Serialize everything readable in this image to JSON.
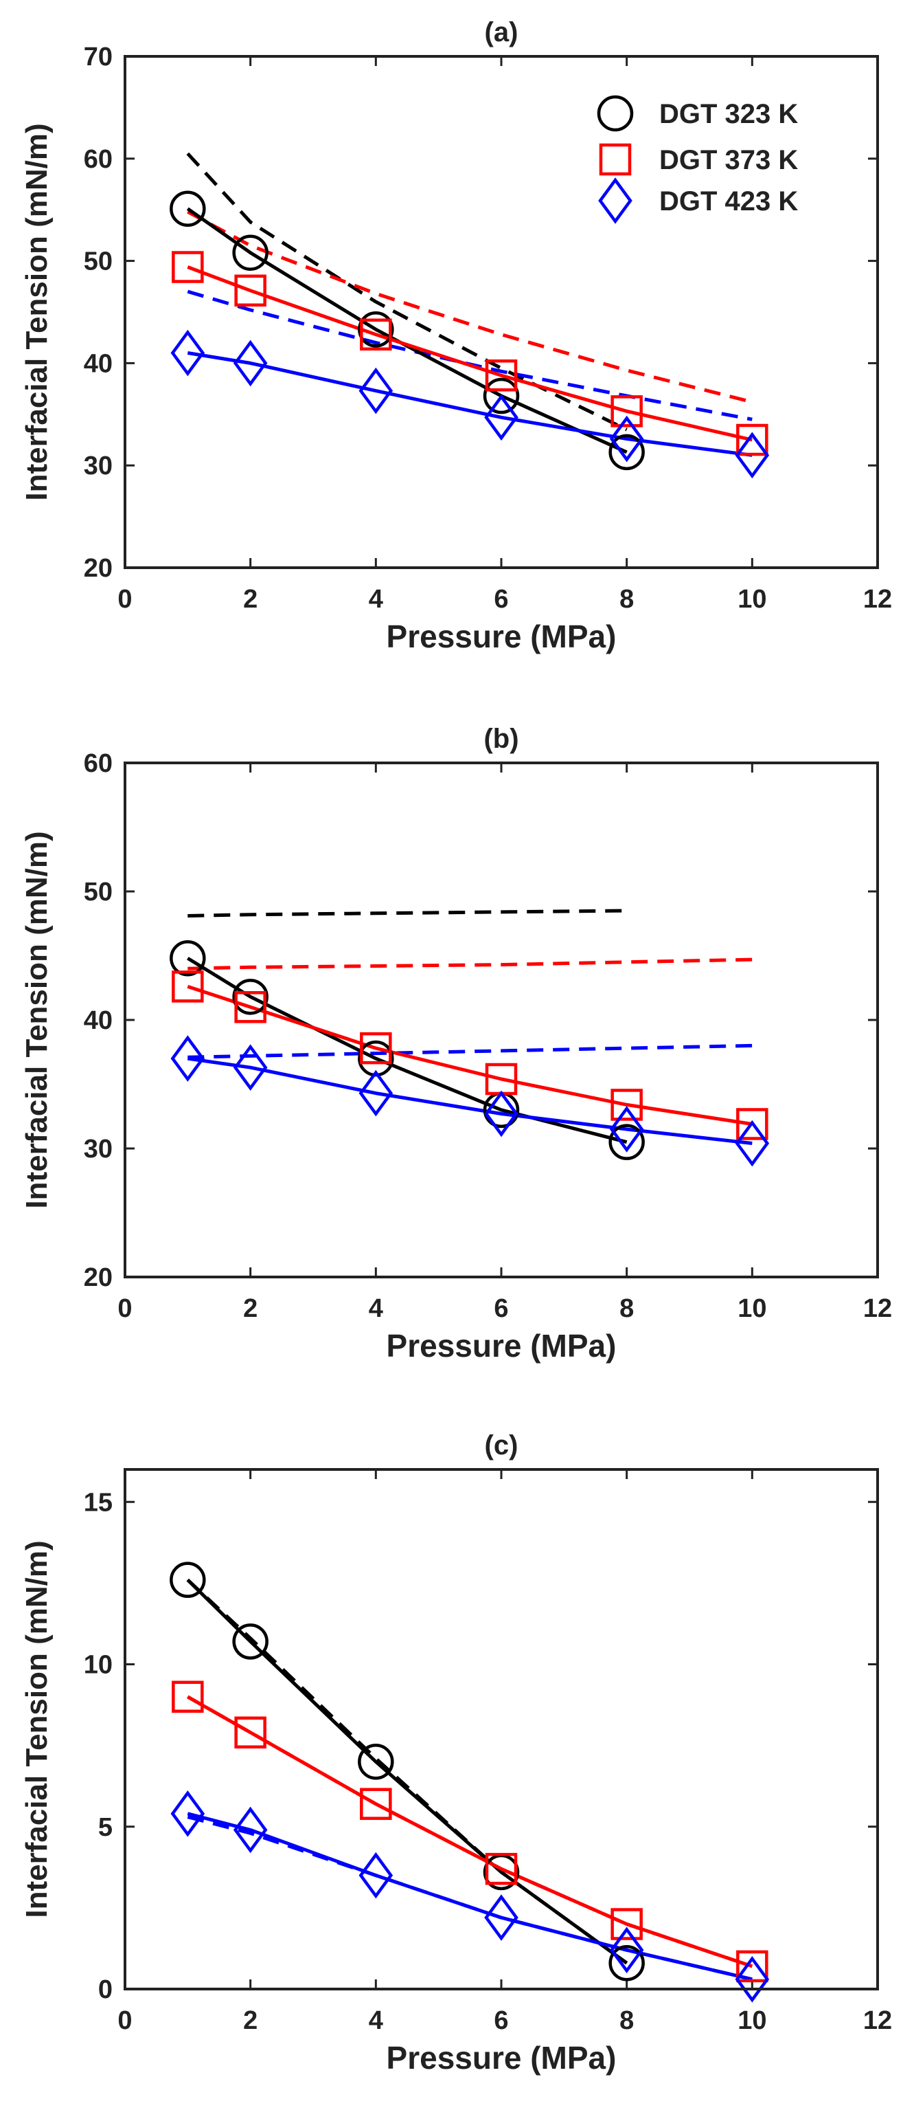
{
  "chart_data": [
    {
      "type": "line",
      "title": "(a)",
      "xlabel": "Pressure (MPa)",
      "ylabel": "Interfacial Tension (mN/m)",
      "xlim": [
        0,
        12
      ],
      "ylim": [
        20,
        70
      ],
      "xticks": [
        0,
        2,
        4,
        6,
        8,
        10,
        12
      ],
      "yticks": [
        20,
        30,
        40,
        50,
        60,
        70
      ],
      "legend": {
        "position": "top-right",
        "entries": [
          {
            "label": "DGT 323 K",
            "marker": "circle",
            "color": "#000000"
          },
          {
            "label": "DGT 373 K",
            "marker": "square",
            "color": "#ff0000"
          },
          {
            "label": "DGT 423 K",
            "marker": "diamond",
            "color": "#0000ff"
          }
        ]
      },
      "series": [
        {
          "name": "DGT 323 K",
          "color": "#000000",
          "marker": "circle",
          "style": "solid",
          "x": [
            1,
            2,
            4,
            6,
            8
          ],
          "y": [
            55.1,
            50.8,
            43.3,
            36.8,
            31.3
          ]
        },
        {
          "name": "DGT 373 K",
          "color": "#ff0000",
          "marker": "square",
          "style": "solid",
          "x": [
            1,
            2,
            4,
            6,
            8,
            10
          ],
          "y": [
            49.4,
            47.1,
            42.8,
            38.8,
            35.3,
            32.5
          ]
        },
        {
          "name": "DGT 423 K",
          "color": "#0000ff",
          "marker": "diamond",
          "style": "solid",
          "x": [
            1,
            2,
            4,
            6,
            8,
            10
          ],
          "y": [
            41.0,
            40.0,
            37.3,
            34.7,
            32.6,
            31.0
          ]
        },
        {
          "name": "DGT 323 K (dashed)",
          "color": "#000000",
          "marker": "none",
          "style": "dashed",
          "x": [
            1,
            2,
            4,
            6,
            8
          ],
          "y": [
            60.5,
            53.8,
            46.0,
            39.5,
            33.5
          ]
        },
        {
          "name": "DGT 373 K (dashed)",
          "color": "#ff0000",
          "marker": "none",
          "style": "dashed",
          "x": [
            1,
            2,
            4,
            6,
            8,
            10
          ],
          "y": [
            54.8,
            51.5,
            46.8,
            42.8,
            39.3,
            36.2
          ]
        },
        {
          "name": "DGT 423 K (dashed)",
          "color": "#0000ff",
          "marker": "none",
          "style": "dashed",
          "x": [
            1,
            2,
            4,
            6,
            8,
            10
          ],
          "y": [
            47.0,
            45.2,
            42.0,
            39.2,
            36.8,
            34.5
          ]
        }
      ]
    },
    {
      "type": "line",
      "title": "(b)",
      "xlabel": "Pressure (MPa)",
      "ylabel": "Interfacial Tension (mN/m)",
      "xlim": [
        0,
        12
      ],
      "ylim": [
        20,
        60
      ],
      "xticks": [
        0,
        2,
        4,
        6,
        8,
        10,
        12
      ],
      "yticks": [
        20,
        30,
        40,
        50,
        60
      ],
      "series": [
        {
          "name": "DGT 323 K",
          "color": "#000000",
          "marker": "circle",
          "style": "solid",
          "x": [
            1,
            2,
            4,
            6,
            8
          ],
          "y": [
            44.8,
            41.8,
            37.0,
            33.0,
            30.5
          ]
        },
        {
          "name": "DGT 373 K",
          "color": "#ff0000",
          "marker": "square",
          "style": "solid",
          "x": [
            1,
            2,
            4,
            6,
            8,
            10
          ],
          "y": [
            42.6,
            41.0,
            37.8,
            35.4,
            33.4,
            31.9
          ]
        },
        {
          "name": "DGT 423 K",
          "color": "#0000ff",
          "marker": "diamond",
          "style": "solid",
          "x": [
            1,
            2,
            4,
            6,
            8,
            10
          ],
          "y": [
            37.0,
            36.3,
            34.3,
            32.7,
            31.5,
            30.4
          ]
        },
        {
          "name": "DGT 323 K (dashed)",
          "color": "#000000",
          "marker": "none",
          "style": "dashed",
          "x": [
            1,
            2,
            4,
            6,
            8
          ],
          "y": [
            48.1,
            48.2,
            48.3,
            48.4,
            48.5
          ]
        },
        {
          "name": "DGT 373 K (dashed)",
          "color": "#ff0000",
          "marker": "none",
          "style": "dashed",
          "x": [
            1,
            2,
            4,
            6,
            8,
            10
          ],
          "y": [
            44.0,
            44.1,
            44.2,
            44.3,
            44.5,
            44.7
          ]
        },
        {
          "name": "DGT 423 K (dashed)",
          "color": "#0000ff",
          "marker": "none",
          "style": "dashed",
          "x": [
            1,
            2,
            4,
            6,
            8,
            10
          ],
          "y": [
            37.1,
            37.2,
            37.4,
            37.6,
            37.8,
            38.0
          ]
        }
      ]
    },
    {
      "type": "line",
      "title": "(c)",
      "xlabel": "Pressure (MPa)",
      "ylabel": "Interfacial Tension (mN/m)",
      "xlim": [
        0,
        12
      ],
      "ylim": [
        0,
        16
      ],
      "xticks": [
        0,
        2,
        4,
        6,
        8,
        10,
        12
      ],
      "yticks": [
        0,
        5,
        10,
        15
      ],
      "series": [
        {
          "name": "DGT 323 K",
          "color": "#000000",
          "marker": "circle",
          "style": "solid",
          "x": [
            1,
            2,
            4,
            6,
            8
          ],
          "y": [
            12.6,
            10.7,
            7.0,
            3.6,
            0.8
          ]
        },
        {
          "name": "DGT 373 K",
          "color": "#ff0000",
          "marker": "square",
          "style": "solid",
          "x": [
            1,
            2,
            4,
            6,
            8,
            10
          ],
          "y": [
            9.0,
            7.9,
            5.7,
            3.7,
            2.0,
            0.7
          ]
        },
        {
          "name": "DGT 423 K",
          "color": "#0000ff",
          "marker": "diamond",
          "style": "solid",
          "x": [
            1,
            2,
            4,
            6,
            8,
            10
          ],
          "y": [
            5.4,
            4.9,
            3.5,
            2.2,
            1.2,
            0.3
          ]
        },
        {
          "name": "DGT 323 K (dashed)",
          "color": "#000000",
          "marker": "none",
          "style": "dashed",
          "x": [
            1,
            2,
            4,
            6,
            8
          ],
          "y": [
            12.6,
            10.8,
            7.1,
            3.6,
            0.8
          ]
        },
        {
          "name": "DGT 373 K (dashed)",
          "color": "#ff0000",
          "marker": "none",
          "style": "dashed",
          "x": [
            1,
            2,
            4,
            6,
            8,
            10
          ],
          "y": [
            9.0,
            7.9,
            5.7,
            3.7,
            2.0,
            0.7
          ]
        },
        {
          "name": "DGT 423 K (dashed)",
          "color": "#0000ff",
          "marker": "none",
          "style": "dashed",
          "x": [
            1,
            2,
            4,
            6,
            8,
            10
          ],
          "y": [
            5.3,
            4.8,
            3.5,
            2.2,
            1.2,
            0.3
          ]
        }
      ]
    }
  ]
}
